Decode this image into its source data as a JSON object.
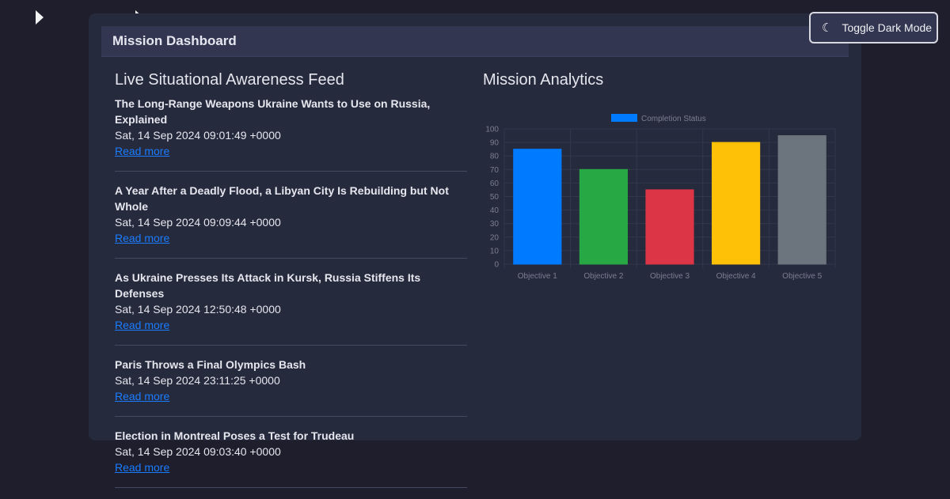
{
  "header": {
    "title": "Mission Dashboard"
  },
  "toggle": {
    "label": "Toggle Dark Mode",
    "icon": "moon-icon"
  },
  "feed": {
    "title": "Live Situational Awareness Feed",
    "items": [
      {
        "title": "The Long-Range Weapons Ukraine Wants to Use on Russia, Explained",
        "date": "Sat, 14 Sep 2024 09:01:49 +0000",
        "link": "Read more"
      },
      {
        "title": "A Year After a Deadly Flood, a Libyan City Is Rebuilding but Not Whole",
        "date": "Sat, 14 Sep 2024 09:09:44 +0000",
        "link": "Read more"
      },
      {
        "title": "As Ukraine Presses Its Attack in Kursk, Russia Stiffens Its Defenses",
        "date": "Sat, 14 Sep 2024 12:50:48 +0000",
        "link": "Read more"
      },
      {
        "title": "Paris Throws a Final Olympics Bash",
        "date": "Sat, 14 Sep 2024 23:11:25 +0000",
        "link": "Read more"
      },
      {
        "title": "Election in Montreal Poses a Test for Trudeau",
        "date": "Sat, 14 Sep 2024 09:03:40 +0000",
        "link": "Read more"
      }
    ]
  },
  "analytics": {
    "title": "Mission Analytics"
  },
  "chart_data": {
    "type": "bar",
    "categories": [
      "Objective 1",
      "Objective 2",
      "Objective 3",
      "Objective 4",
      "Objective 5"
    ],
    "series": [
      {
        "name": "Completion Status",
        "values": [
          85,
          70,
          55,
          90,
          95
        ]
      }
    ],
    "colors": [
      "#007bff",
      "#28a745",
      "#dc3545",
      "#ffc107",
      "#6c757d"
    ],
    "ylim": [
      0,
      100
    ],
    "yticks": [
      0,
      10,
      20,
      30,
      40,
      50,
      60,
      70,
      80,
      90,
      100
    ],
    "grid": true,
    "legend": "top"
  }
}
